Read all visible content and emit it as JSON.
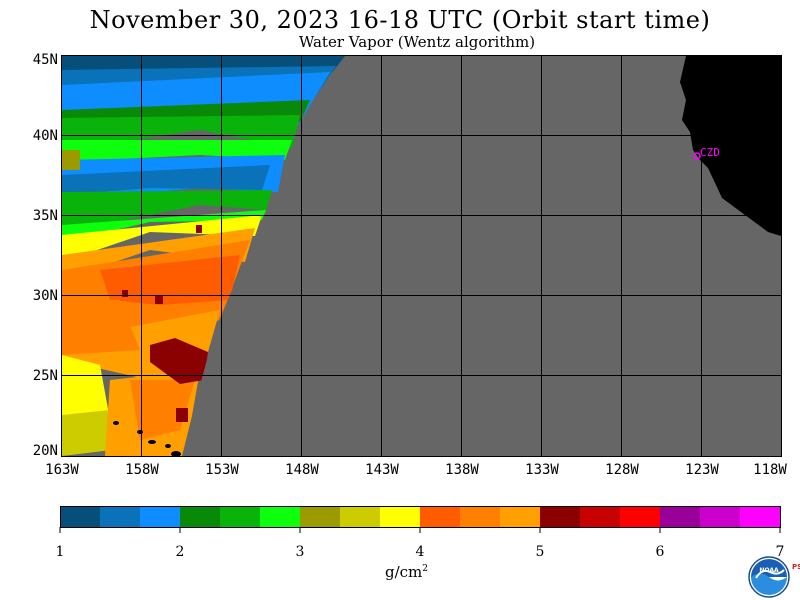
{
  "header": {
    "title": "November 30, 2023  16-18 UTC  (Orbit start time)",
    "subtitle": "Water Vapor (Wentz algorithm)"
  },
  "map": {
    "lat_labels": [
      "45N",
      "40N",
      "35N",
      "30N",
      "25N",
      "20N"
    ],
    "lon_labels": [
      "163W",
      "158W",
      "153W",
      "148W",
      "143W",
      "138W",
      "133W",
      "128W",
      "123W",
      "118W"
    ],
    "station_label": "CZD",
    "colors": {
      "no_data": "#666666",
      "land": "#000000",
      "grid": "#000000",
      "station": "#ff00ff"
    }
  },
  "colorbar": {
    "tick_labels": [
      "1",
      "2",
      "3",
      "4",
      "5",
      "6",
      "7"
    ],
    "unit_base": "g/cm",
    "unit_exp": "2",
    "colors": [
      "#074f7b",
      "#0a72b8",
      "#0d8dff",
      "#088a08",
      "#0ab30a",
      "#0dff0d",
      "#9b9b00",
      "#cccc00",
      "#ffff00",
      "#ff5c00",
      "#ff8000",
      "#ffa000",
      "#8b0000",
      "#c70000",
      "#ff0000",
      "#990099",
      "#cc00cc",
      "#ff00ff"
    ]
  },
  "footer": {
    "logo_text": "NOAA",
    "psl_text": "PSL"
  }
}
